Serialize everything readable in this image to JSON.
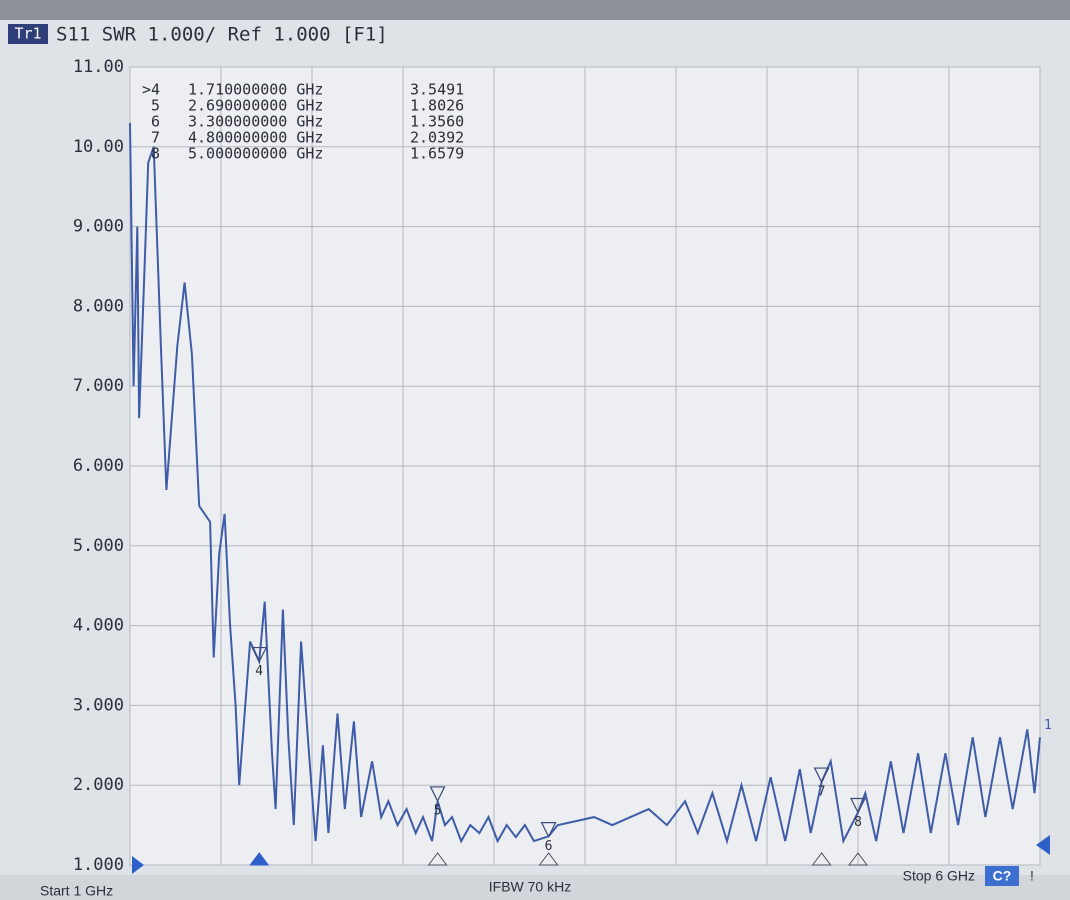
{
  "chart_data": {
    "type": "line",
    "trace_label": "Tr1",
    "title": "S11  SWR 1.000/ Ref 1.000 [F1]",
    "trace_end_label": "1",
    "footer_left": "Start 1 GHz",
    "footer_center": "IFBW 70 kHz",
    "footer_right": "Stop 6 GHz",
    "status_badge": "C?",
    "status_flag": "!",
    "color": "#3f5ca8",
    "grid": true,
    "xlim": [
      1,
      6
    ],
    "xticks": [
      1,
      1.5,
      2,
      2.5,
      3,
      3.5,
      4,
      4.5,
      5,
      5.5,
      6
    ],
    "ylim": [
      1,
      11
    ],
    "yticks": [
      {
        "value": 1,
        "label": "1.000"
      },
      {
        "value": 2,
        "label": "2.000"
      },
      {
        "value": 3,
        "label": "3.000"
      },
      {
        "value": 4,
        "label": "4.000"
      },
      {
        "value": 5,
        "label": "5.000"
      },
      {
        "value": 6,
        "label": "6.000"
      },
      {
        "value": 7,
        "label": "7.000"
      },
      {
        "value": 8,
        "label": "8.000"
      },
      {
        "value": 9,
        "label": "9.000"
      },
      {
        "value": 10,
        "label": "10.00"
      },
      {
        "value": 11,
        "label": "11.00"
      }
    ],
    "x": [
      1.0,
      1.02,
      1.04,
      1.05,
      1.08,
      1.1,
      1.13,
      1.17,
      1.2,
      1.26,
      1.3,
      1.34,
      1.38,
      1.44,
      1.46,
      1.49,
      1.52,
      1.55,
      1.58,
      1.6,
      1.66,
      1.71,
      1.74,
      1.78,
      1.8,
      1.84,
      1.87,
      1.9,
      1.94,
      1.98,
      2.02,
      2.06,
      2.09,
      2.14,
      2.18,
      2.23,
      2.27,
      2.33,
      2.38,
      2.42,
      2.47,
      2.52,
      2.57,
      2.61,
      2.66,
      2.69,
      2.73,
      2.77,
      2.82,
      2.87,
      2.92,
      2.97,
      3.02,
      3.07,
      3.12,
      3.17,
      3.22,
      3.3,
      3.35,
      3.45,
      3.55,
      3.65,
      3.75,
      3.85,
      3.95,
      4.05,
      4.12,
      4.2,
      4.28,
      4.36,
      4.44,
      4.52,
      4.6,
      4.68,
      4.74,
      4.8,
      4.85,
      4.92,
      5.0,
      5.04,
      5.1,
      5.18,
      5.25,
      5.33,
      5.4,
      5.48,
      5.55,
      5.63,
      5.7,
      5.78,
      5.85,
      5.93,
      5.97,
      6.0
    ],
    "values": [
      10.3,
      7.0,
      9.0,
      6.6,
      8.5,
      9.8,
      10.0,
      7.5,
      5.7,
      7.5,
      8.3,
      7.4,
      5.5,
      5.3,
      3.6,
      4.9,
      5.4,
      4.0,
      3.0,
      2.0,
      3.8,
      3.55,
      4.3,
      2.4,
      1.7,
      4.2,
      2.6,
      1.5,
      3.8,
      2.5,
      1.3,
      2.5,
      1.4,
      2.9,
      1.7,
      2.8,
      1.6,
      2.3,
      1.6,
      1.8,
      1.5,
      1.7,
      1.4,
      1.6,
      1.3,
      1.8,
      1.5,
      1.6,
      1.3,
      1.5,
      1.4,
      1.6,
      1.3,
      1.5,
      1.35,
      1.5,
      1.3,
      1.36,
      1.5,
      1.55,
      1.6,
      1.5,
      1.6,
      1.7,
      1.5,
      1.8,
      1.4,
      1.9,
      1.3,
      2.0,
      1.3,
      2.1,
      1.3,
      2.2,
      1.4,
      2.04,
      2.3,
      1.3,
      1.66,
      1.9,
      1.3,
      2.3,
      1.4,
      2.4,
      1.4,
      2.4,
      1.5,
      2.6,
      1.6,
      2.6,
      1.7,
      2.7,
      1.9,
      2.6
    ],
    "markers": [
      {
        "name": "4",
        "table_label": ">4",
        "x": 1.71,
        "x_label": "1.710000000 GHz",
        "value": 3.5491,
        "value_label": "3.5491"
      },
      {
        "name": "5",
        "table_label": "5",
        "x": 2.69,
        "x_label": "2.690000000 GHz",
        "value": 1.8026,
        "value_label": "1.8026"
      },
      {
        "name": "6",
        "table_label": "6",
        "x": 3.3,
        "x_label": "3.300000000 GHz",
        "value": 1.356,
        "value_label": "1.3560"
      },
      {
        "name": "7",
        "table_label": "7",
        "x": 4.8,
        "x_label": "4.800000000 GHz",
        "value": 2.0392,
        "value_label": "2.0392"
      },
      {
        "name": "8",
        "table_label": "8",
        "x": 5.0,
        "x_label": "5.000000000 GHz",
        "value": 1.6579,
        "value_label": "1.6579"
      }
    ]
  }
}
